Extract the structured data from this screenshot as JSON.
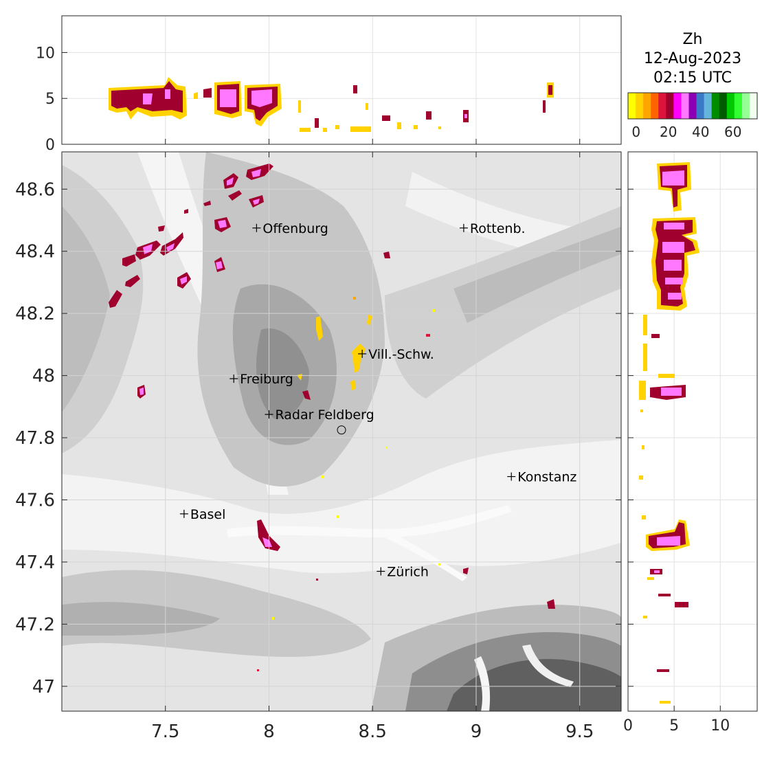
{
  "product": {
    "variable": "Zh",
    "date": "12-Aug-2023",
    "time": "02:15 UTC"
  },
  "colorbar": {
    "colors": [
      "#ffff00",
      "#ffd200",
      "#ffa500",
      "#ff6400",
      "#dc143c",
      "#a0002d",
      "#ff00ff",
      "#ff78ff",
      "#8c00b4",
      "#3c78c8",
      "#64b4dc",
      "#008c00",
      "#005a00",
      "#00c800",
      "#32ff32",
      "#96ff96",
      "#f0fff0"
    ],
    "ticks": [
      "0",
      "20",
      "40",
      "60"
    ]
  },
  "map": {
    "x_ticks": [
      "7.5",
      "8",
      "8.5",
      "9",
      "9.5"
    ],
    "y_ticks": [
      "48.6",
      "48.4",
      "48.2",
      "48",
      "47.8",
      "47.6",
      "47.4",
      "47.2",
      "47"
    ],
    "places": [
      {
        "name": "Offenburg",
        "lon": 7.94,
        "lat": 48.475
      },
      {
        "name": "Rottenb.",
        "lon": 8.94,
        "lat": 48.475
      },
      {
        "name": "Vill.-Schw.",
        "lon": 8.45,
        "lat": 48.07
      },
      {
        "name": "Freiburg",
        "lon": 7.83,
        "lat": 47.99
      },
      {
        "name": "Radar Feldberg",
        "lon": 8.0,
        "lat": 47.875
      },
      {
        "name": "Konstanz",
        "lon": 9.17,
        "lat": 47.675
      },
      {
        "name": "Basel",
        "lon": 7.59,
        "lat": 47.555
      },
      {
        "name": "Zürich",
        "lon": 8.54,
        "lat": 47.37
      }
    ],
    "radar_site": {
      "lon": 8.35,
      "lat": 47.825
    }
  },
  "top_panel": {
    "y_ticks": [
      "0",
      "5",
      "10"
    ]
  },
  "side_panel": {
    "x_ticks": [
      "0",
      "5",
      "10"
    ]
  }
}
